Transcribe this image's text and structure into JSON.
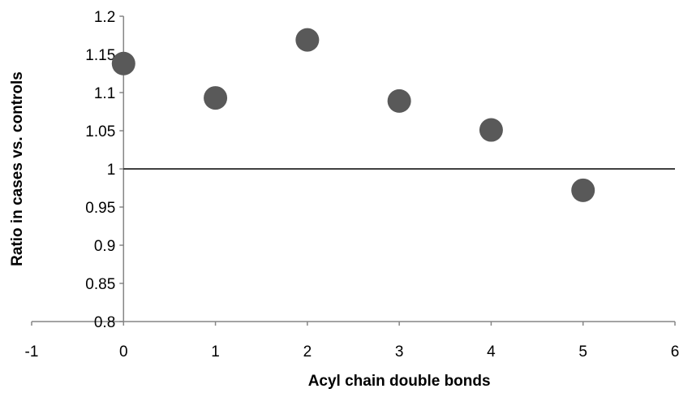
{
  "chart_data": {
    "type": "scatter",
    "title": "",
    "xlabel": "Acyl chain double bonds",
    "ylabel": "Ratio in cases vs. controls",
    "xlim": [
      -1,
      6
    ],
    "ylim": [
      0.8,
      1.2
    ],
    "xticks": [
      -1,
      0,
      1,
      2,
      3,
      4,
      5,
      6
    ],
    "yticks": [
      0.8,
      0.85,
      0.9,
      0.95,
      1,
      1.05,
      1.1,
      1.15,
      1.2
    ],
    "xtick_labels": [
      "-1",
      "0",
      "1",
      "2",
      "3",
      "4",
      "5",
      "6"
    ],
    "ytick_labels": [
      "0.8",
      "0.85",
      "0.9",
      "0.95",
      "1",
      "1.05",
      "1.1",
      "1.15",
      "1.2"
    ],
    "grid": false,
    "reference_line_y": 1,
    "series": [
      {
        "x": [
          0,
          1,
          2,
          3,
          4,
          5
        ],
        "y": [
          1.138,
          1.093,
          1.169,
          1.089,
          1.051,
          0.972
        ]
      }
    ],
    "colors": {
      "marker": "#595959",
      "axis": "#868686",
      "reference_line": "#000000"
    }
  }
}
